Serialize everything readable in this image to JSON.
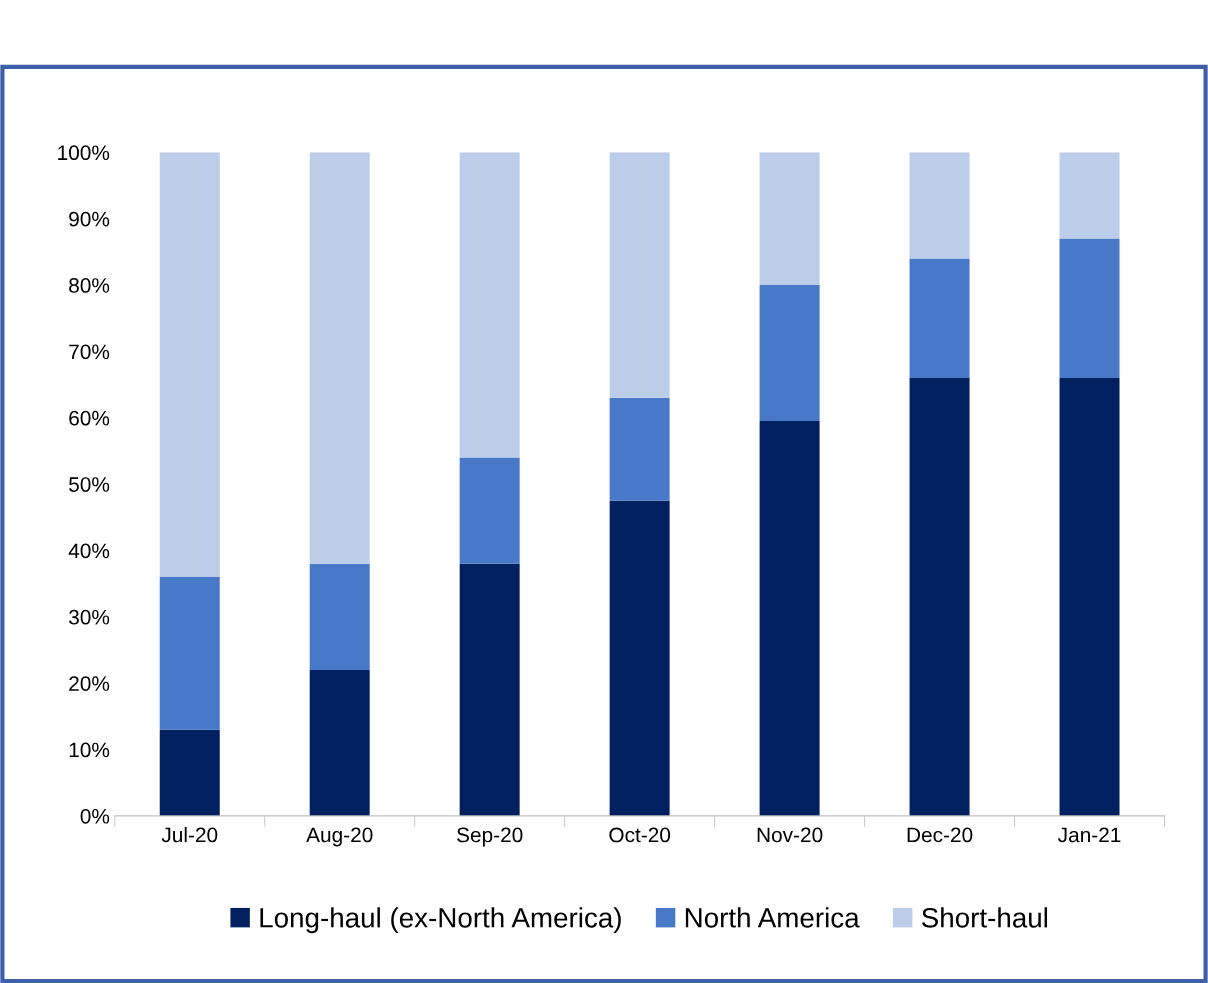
{
  "chart_data": {
    "type": "bar",
    "stacked": true,
    "categories": [
      "Jul-20",
      "Aug-20",
      "Sep-20",
      "Oct-20",
      "Nov-20",
      "Dec-20",
      "Jan-21"
    ],
    "series": [
      {
        "name": "Long-haul (ex-North America)",
        "color": "#002060",
        "values": [
          13,
          22,
          38,
          47.5,
          59.5,
          66,
          66
        ]
      },
      {
        "name": "North America",
        "color": "#4878c8",
        "values": [
          23,
          16,
          16,
          15.5,
          20.5,
          18,
          21
        ]
      },
      {
        "name": "Short-haul",
        "color": "#bccde9",
        "values": [
          64,
          62,
          46,
          37,
          20,
          16,
          13
        ]
      }
    ],
    "ylim": [
      0,
      100
    ],
    "yticks": [
      {
        "value": 0,
        "label": "0%"
      },
      {
        "value": 10,
        "label": "10%"
      },
      {
        "value": 20,
        "label": "20%"
      },
      {
        "value": 30,
        "label": "30%"
      },
      {
        "value": 40,
        "label": "40%"
      },
      {
        "value": 50,
        "label": "50%"
      },
      {
        "value": 60,
        "label": "60%"
      },
      {
        "value": 70,
        "label": "70%"
      },
      {
        "value": 80,
        "label": "80%"
      },
      {
        "value": 90,
        "label": "90%"
      },
      {
        "value": 100,
        "label": "100%"
      }
    ],
    "grid": false,
    "legend": "bottom"
  }
}
